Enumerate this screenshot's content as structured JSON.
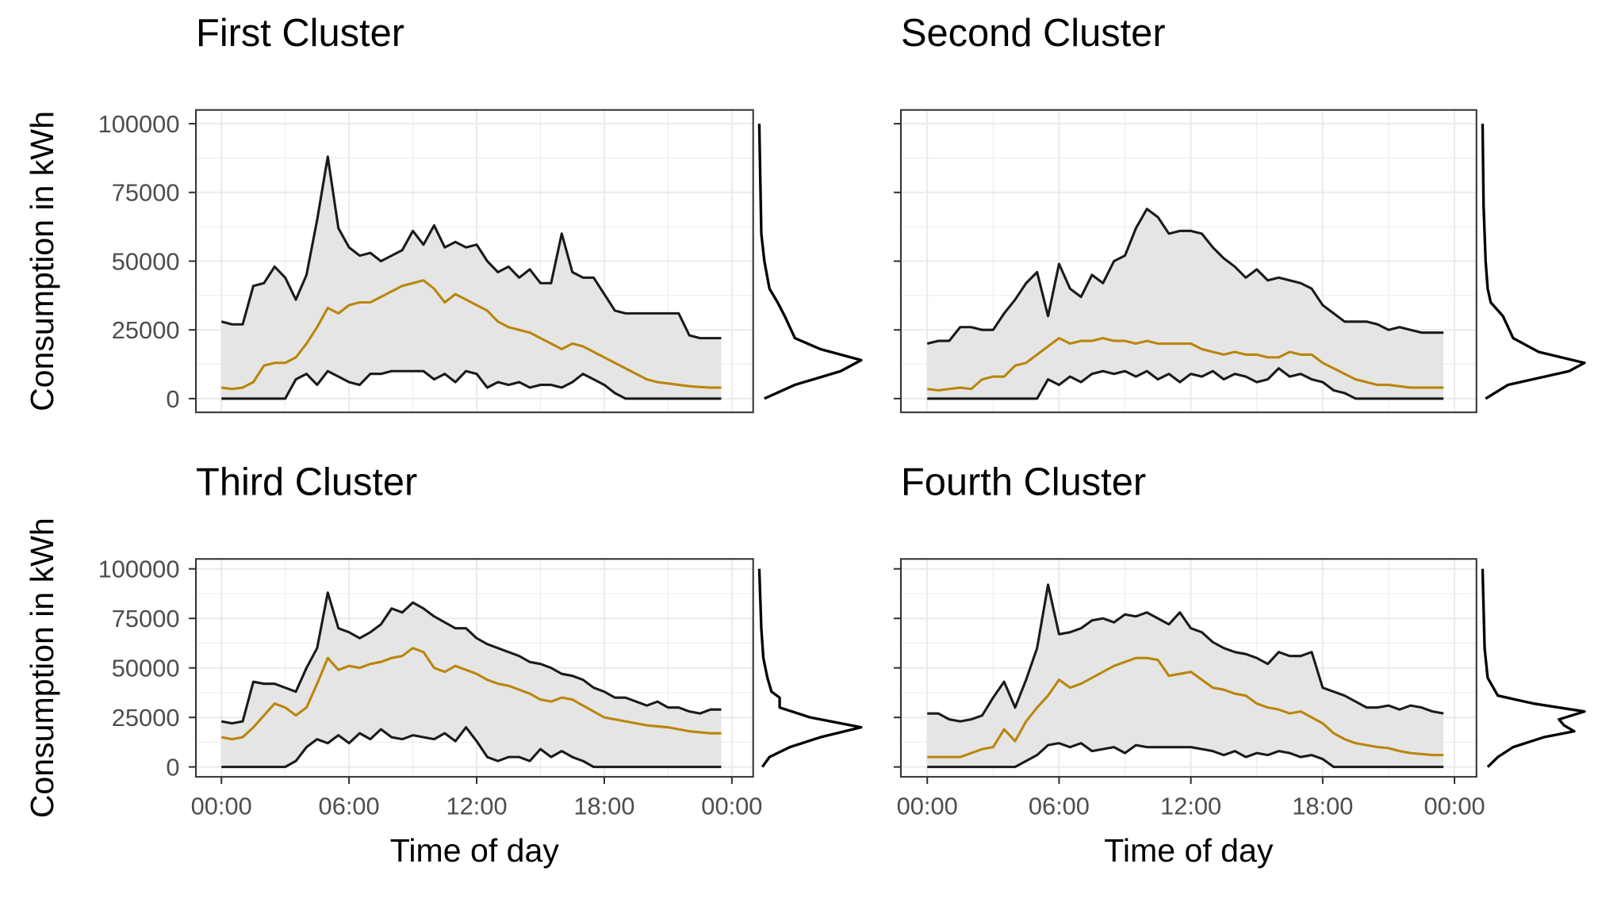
{
  "chart_data": [
    {
      "type": "line",
      "title": "First Cluster",
      "ylabel": "Consumption in kWh",
      "ytick_labels": true,
      "xtick_labels": false,
      "xlim": [
        -1.2,
        25
      ],
      "ylim": [
        -5000,
        105000
      ],
      "xticks": [
        0,
        6,
        12,
        18,
        24
      ],
      "yticks": [
        0,
        25000,
        50000,
        75000,
        100000
      ],
      "grid": true,
      "band_color": "#e5e5e5",
      "x": [
        0,
        0.5,
        1,
        1.5,
        2,
        2.5,
        3,
        3.5,
        4,
        4.5,
        5,
        5.5,
        6,
        6.5,
        7,
        7.5,
        8,
        8.5,
        9,
        9.5,
        10,
        10.5,
        11,
        11.5,
        12,
        12.5,
        13,
        13.5,
        14,
        14.5,
        15,
        15.5,
        16,
        16.5,
        17,
        17.5,
        18,
        18.5,
        19,
        19.5,
        20,
        20.5,
        21,
        21.5,
        22,
        22.5,
        23,
        23.5
      ],
      "series": [
        {
          "color": "#1a1a1a",
          "values": [
            28000,
            27000,
            27000,
            41000,
            42000,
            48000,
            44000,
            36000,
            45000,
            65000,
            88000,
            62000,
            55000,
            52000,
            53000,
            50000,
            52000,
            54000,
            61000,
            56000,
            63000,
            55000,
            57000,
            55000,
            56000,
            50000,
            46000,
            48000,
            44000,
            47000,
            42000,
            42000,
            60000,
            46000,
            44000,
            44000,
            38000,
            32000,
            31000,
            31000,
            31000,
            31000,
            31000,
            31000,
            23000,
            22000,
            22000,
            22000
          ]
        },
        {
          "color": "#b8860b",
          "values": [
            4000,
            3500,
            4000,
            6000,
            12000,
            13000,
            13000,
            15000,
            20000,
            26000,
            33000,
            31000,
            34000,
            35000,
            35000,
            37000,
            39000,
            41000,
            42000,
            43000,
            40000,
            35000,
            38000,
            36000,
            34000,
            32000,
            28000,
            26000,
            25000,
            24000,
            22000,
            20000,
            18000,
            20000,
            19000,
            17000,
            15000,
            13000,
            11000,
            9000,
            7000,
            6000,
            5500,
            5000,
            4500,
            4200,
            4000,
            4000
          ]
        },
        {
          "color": "#1a1a1a",
          "values": [
            0,
            0,
            0,
            0,
            0,
            0,
            0,
            7000,
            9000,
            5000,
            10000,
            8000,
            6000,
            5000,
            9000,
            9000,
            10000,
            10000,
            10000,
            10000,
            7000,
            9000,
            6000,
            10000,
            9000,
            4000,
            6000,
            5000,
            6000,
            4000,
            5000,
            5000,
            4000,
            6000,
            9000,
            7000,
            5000,
            2000,
            0,
            0,
            0,
            0,
            0,
            0,
            0,
            0,
            0,
            0
          ]
        }
      ],
      "density": {
        "y": [
          0,
          5000,
          10000,
          14000,
          18000,
          22000,
          26000,
          30000,
          35000,
          40000,
          50000,
          60000,
          80000,
          100000
        ],
        "values": [
          0.05,
          0.35,
          0.8,
          1,
          0.6,
          0.35,
          0.3,
          0.25,
          0.18,
          0.1,
          0.05,
          0.02,
          0.01,
          0
        ]
      }
    },
    {
      "type": "line",
      "title": "Second Cluster",
      "ytick_labels": false,
      "xtick_labels": false,
      "xlim": [
        -1.2,
        25
      ],
      "ylim": [
        -5000,
        105000
      ],
      "xticks": [
        0,
        6,
        12,
        18,
        24
      ],
      "yticks": [
        0,
        25000,
        50000,
        75000,
        100000
      ],
      "grid": true,
      "band_color": "#e5e5e5",
      "x": [
        0,
        0.5,
        1,
        1.5,
        2,
        2.5,
        3,
        3.5,
        4,
        4.5,
        5,
        5.5,
        6,
        6.5,
        7,
        7.5,
        8,
        8.5,
        9,
        9.5,
        10,
        10.5,
        11,
        11.5,
        12,
        12.5,
        13,
        13.5,
        14,
        14.5,
        15,
        15.5,
        16,
        16.5,
        17,
        17.5,
        18,
        18.5,
        19,
        19.5,
        20,
        20.5,
        21,
        21.5,
        22,
        22.5,
        23,
        23.5
      ],
      "series": [
        {
          "color": "#1a1a1a",
          "values": [
            20000,
            21000,
            21000,
            26000,
            26000,
            25000,
            25000,
            31000,
            36000,
            42000,
            46000,
            30000,
            49000,
            40000,
            37000,
            45000,
            42000,
            50000,
            52000,
            62000,
            69000,
            66000,
            60000,
            61000,
            61000,
            60000,
            55000,
            51000,
            48000,
            44000,
            47000,
            43000,
            44000,
            43000,
            42000,
            40000,
            34000,
            31000,
            28000,
            28000,
            28000,
            27000,
            25000,
            26000,
            25000,
            24000,
            24000,
            24000
          ]
        },
        {
          "color": "#b8860b",
          "values": [
            3500,
            3000,
            3500,
            4000,
            3500,
            7000,
            8000,
            8000,
            12000,
            13000,
            16000,
            19000,
            22000,
            20000,
            21000,
            21000,
            22000,
            21000,
            21000,
            20000,
            21000,
            20000,
            20000,
            20000,
            20000,
            18000,
            17000,
            16000,
            17000,
            16000,
            16000,
            15000,
            15000,
            17000,
            16000,
            16000,
            13000,
            11000,
            9000,
            7000,
            6000,
            5000,
            5000,
            4500,
            4000,
            4000,
            4000,
            4000
          ]
        },
        {
          "color": "#1a1a1a",
          "values": [
            0,
            0,
            0,
            0,
            0,
            0,
            0,
            0,
            0,
            0,
            0,
            7000,
            5000,
            8000,
            6000,
            9000,
            10000,
            9000,
            10000,
            8000,
            10000,
            7000,
            9000,
            6000,
            9000,
            8000,
            10000,
            7000,
            9000,
            8000,
            6000,
            7000,
            11000,
            8000,
            9000,
            7000,
            6000,
            3000,
            2000,
            0,
            0,
            0,
            0,
            0,
            0,
            0,
            0,
            0
          ]
        }
      ],
      "density": {
        "y": [
          0,
          5000,
          10000,
          13000,
          17000,
          22000,
          26000,
          30000,
          35000,
          40000,
          50000,
          70000,
          100000
        ],
        "values": [
          0.03,
          0.25,
          0.85,
          1,
          0.55,
          0.3,
          0.25,
          0.2,
          0.08,
          0.05,
          0.03,
          0.01,
          0
        ]
      }
    },
    {
      "type": "line",
      "title": "Third Cluster",
      "ylabel": "Consumption in kWh",
      "xlabel": "Time of day",
      "ytick_labels": true,
      "xtick_labels": true,
      "xlim": [
        -1.2,
        25
      ],
      "ylim": [
        -5000,
        105000
      ],
      "xticks": [
        {
          "value": 0,
          "label": "00:00"
        },
        {
          "value": 6,
          "label": "06:00"
        },
        {
          "value": 12,
          "label": "12:00"
        },
        {
          "value": 18,
          "label": "18:00"
        },
        {
          "value": 24,
          "label": "00:00"
        }
      ],
      "yticks": [
        0,
        25000,
        50000,
        75000,
        100000
      ],
      "grid": true,
      "band_color": "#e5e5e5",
      "x": [
        0,
        0.5,
        1,
        1.5,
        2,
        2.5,
        3,
        3.5,
        4,
        4.5,
        5,
        5.5,
        6,
        6.5,
        7,
        7.5,
        8,
        8.5,
        9,
        9.5,
        10,
        10.5,
        11,
        11.5,
        12,
        12.5,
        13,
        13.5,
        14,
        14.5,
        15,
        15.5,
        16,
        16.5,
        17,
        17.5,
        18,
        18.5,
        19,
        19.5,
        20,
        20.5,
        21,
        21.5,
        22,
        22.5,
        23,
        23.5
      ],
      "series": [
        {
          "color": "#1a1a1a",
          "values": [
            23000,
            22000,
            23000,
            43000,
            42000,
            42000,
            40000,
            38000,
            50000,
            60000,
            88000,
            70000,
            68000,
            65000,
            68000,
            72000,
            80000,
            78000,
            83000,
            80000,
            76000,
            73000,
            70000,
            70000,
            65000,
            62000,
            60000,
            58000,
            56000,
            53000,
            52000,
            50000,
            47000,
            46000,
            44000,
            40000,
            38000,
            35000,
            35000,
            33000,
            31000,
            33000,
            30000,
            30000,
            28000,
            27000,
            29000,
            29000
          ]
        },
        {
          "color": "#b8860b",
          "values": [
            15000,
            14000,
            15000,
            20000,
            26000,
            32000,
            30000,
            26000,
            30000,
            42000,
            55000,
            49000,
            51000,
            50000,
            52000,
            53000,
            55000,
            56000,
            60000,
            58000,
            50000,
            48000,
            51000,
            49000,
            47000,
            44000,
            42000,
            41000,
            39000,
            37000,
            34000,
            33000,
            35000,
            34000,
            31000,
            28000,
            25000,
            24000,
            23000,
            22000,
            21000,
            20500,
            20000,
            19000,
            18000,
            17500,
            17000,
            17000
          ]
        },
        {
          "color": "#1a1a1a",
          "values": [
            0,
            0,
            0,
            0,
            0,
            0,
            0,
            3000,
            10000,
            14000,
            12000,
            16000,
            12000,
            17000,
            14000,
            19000,
            15000,
            14000,
            16000,
            15000,
            14000,
            17000,
            13000,
            20000,
            13000,
            5000,
            3000,
            5000,
            5000,
            3000,
            9000,
            5000,
            8000,
            5000,
            3000,
            0,
            0,
            0,
            0,
            0,
            0,
            0,
            0,
            0,
            0,
            0,
            0,
            0
          ]
        }
      ],
      "density": {
        "y": [
          0,
          5000,
          10000,
          15000,
          20000,
          25000,
          30000,
          35000,
          38000,
          45000,
          55000,
          70000,
          100000
        ],
        "values": [
          0.03,
          0.1,
          0.3,
          0.6,
          1,
          0.5,
          0.2,
          0.2,
          0.12,
          0.08,
          0.04,
          0.02,
          0
        ]
      }
    },
    {
      "type": "line",
      "title": "Fourth Cluster",
      "xlabel": "Time of day",
      "ytick_labels": false,
      "xtick_labels": true,
      "xlim": [
        -1.2,
        25
      ],
      "ylim": [
        -5000,
        105000
      ],
      "xticks": [
        {
          "value": 0,
          "label": "00:00"
        },
        {
          "value": 6,
          "label": "06:00"
        },
        {
          "value": 12,
          "label": "12:00"
        },
        {
          "value": 18,
          "label": "18:00"
        },
        {
          "value": 24,
          "label": "00:00"
        }
      ],
      "yticks": [
        0,
        25000,
        50000,
        75000,
        100000
      ],
      "grid": true,
      "band_color": "#e5e5e5",
      "x": [
        0,
        0.5,
        1,
        1.5,
        2,
        2.5,
        3,
        3.5,
        4,
        4.5,
        5,
        5.5,
        6,
        6.5,
        7,
        7.5,
        8,
        8.5,
        9,
        9.5,
        10,
        10.5,
        11,
        11.5,
        12,
        12.5,
        13,
        13.5,
        14,
        14.5,
        15,
        15.5,
        16,
        16.5,
        17,
        17.5,
        18,
        18.5,
        19,
        19.5,
        20,
        20.5,
        21,
        21.5,
        22,
        22.5,
        23,
        23.5
      ],
      "series": [
        {
          "color": "#1a1a1a",
          "values": [
            27000,
            27000,
            24000,
            23000,
            24000,
            26000,
            35000,
            43000,
            30000,
            44000,
            60000,
            92000,
            67000,
            68000,
            70000,
            74000,
            75000,
            73000,
            77000,
            76000,
            78000,
            75000,
            72000,
            78000,
            70000,
            68000,
            63000,
            60000,
            58000,
            57000,
            55000,
            52000,
            58000,
            56000,
            56000,
            58000,
            40000,
            38000,
            36000,
            33000,
            30000,
            30000,
            31000,
            29000,
            31000,
            30000,
            28000,
            27000
          ]
        },
        {
          "color": "#b8860b",
          "values": [
            5000,
            5000,
            5000,
            5000,
            7000,
            9000,
            10000,
            19000,
            13000,
            23000,
            30000,
            36000,
            44000,
            40000,
            42000,
            45000,
            48000,
            51000,
            53000,
            55000,
            55000,
            54000,
            46000,
            47000,
            48000,
            44000,
            40000,
            39000,
            37000,
            36000,
            32000,
            30000,
            29000,
            27000,
            28000,
            25000,
            22000,
            17000,
            14000,
            12000,
            11000,
            10000,
            9500,
            8000,
            7000,
            6500,
            6000,
            6000
          ]
        },
        {
          "color": "#1a1a1a",
          "values": [
            0,
            0,
            0,
            0,
            0,
            0,
            0,
            0,
            0,
            3000,
            6000,
            11000,
            12000,
            10000,
            12000,
            8000,
            9000,
            10000,
            7000,
            11000,
            10000,
            10000,
            10000,
            10000,
            10000,
            9000,
            8000,
            6000,
            8000,
            5000,
            7000,
            6000,
            8000,
            7000,
            5000,
            6000,
            4000,
            0,
            0,
            0,
            0,
            0,
            0,
            0,
            0,
            0,
            0,
            0
          ]
        }
      ],
      "density": {
        "y": [
          0,
          5000,
          10000,
          15000,
          18000,
          21000,
          24000,
          28000,
          32000,
          36000,
          45000,
          60000,
          100000
        ],
        "values": [
          0.05,
          0.15,
          0.3,
          0.6,
          0.9,
          0.8,
          0.75,
          1,
          0.5,
          0.15,
          0.05,
          0.02,
          0
        ]
      }
    }
  ]
}
